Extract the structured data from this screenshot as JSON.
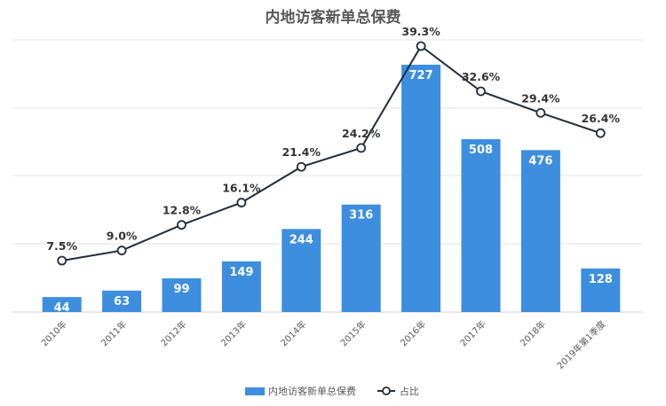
{
  "chart_data": {
    "type": "bar",
    "title": "内地访客新单总保费",
    "categories": [
      "2010年",
      "2011年",
      "2012年",
      "2013年",
      "2014年",
      "2015年",
      "2016年",
      "2017年",
      "2018年",
      "2019年第1季度"
    ],
    "series": [
      {
        "name": "内地访客新单总保费",
        "type": "bar",
        "values": [
          44,
          63,
          99,
          149,
          244,
          316,
          727,
          508,
          476,
          128
        ],
        "labels": [
          "44",
          "63",
          "99",
          "149",
          "244",
          "316",
          "727",
          "508",
          "476",
          "128"
        ]
      },
      {
        "name": "占比",
        "type": "line",
        "values": [
          7.5,
          9.0,
          12.8,
          16.1,
          21.4,
          24.2,
          39.3,
          32.6,
          29.4,
          26.4
        ],
        "labels": [
          "7.5%",
          "9.0%",
          "12.8%",
          "16.1%",
          "21.4%",
          "24.2%",
          "39.3%",
          "32.6%",
          "29.4%",
          "26.4%"
        ]
      }
    ],
    "grid": true,
    "legend_position": "bottom"
  },
  "colors": {
    "bar": "#3d8ede",
    "line": "#1f2d3d",
    "grid": "#e3e3e3",
    "marker_fill": "#ffffff"
  }
}
